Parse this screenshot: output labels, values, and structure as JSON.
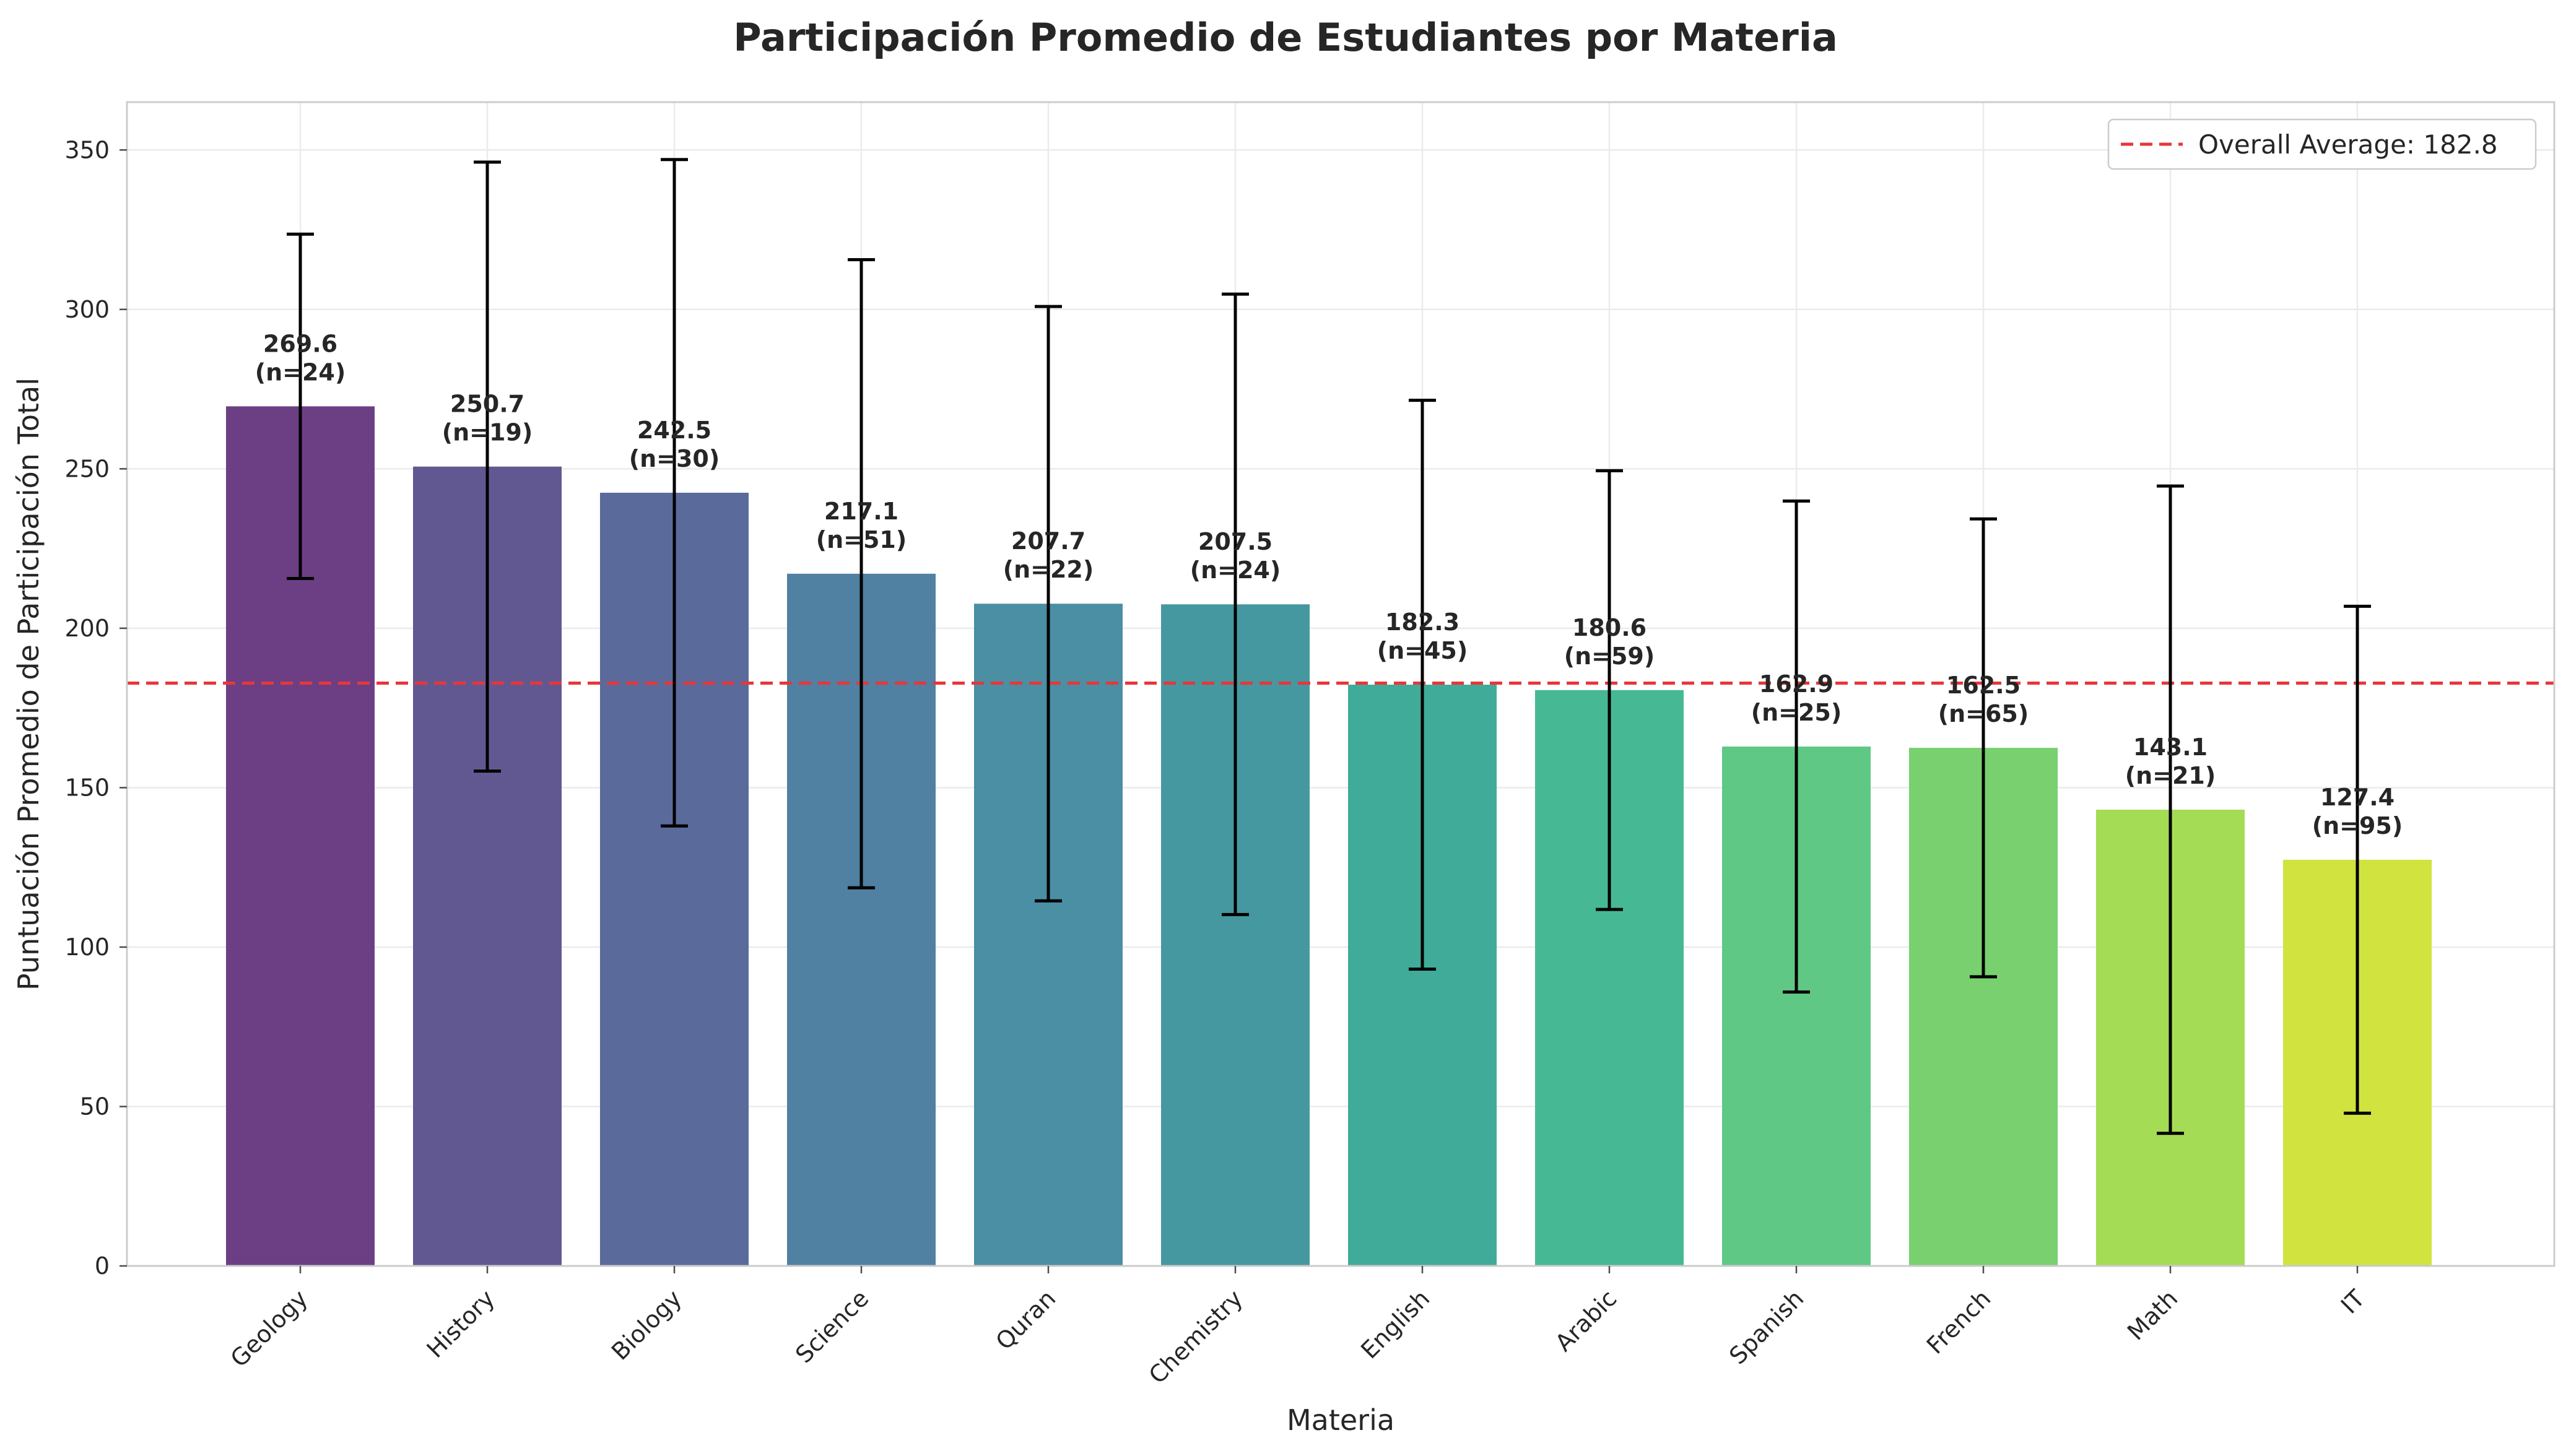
{
  "chart_data": {
    "type": "bar",
    "title": "Participación Promedio de Estudiantes por Materia",
    "xlabel": "Materia",
    "ylabel": "Puntuación Promedio de Participación Total",
    "ylim": [
      0,
      365
    ],
    "yticks": [
      0,
      50,
      100,
      150,
      200,
      250,
      300,
      350
    ],
    "grid": true,
    "legend": {
      "position": "top-right",
      "entries": [
        "Overall Average: 182.8"
      ]
    },
    "reference_line": {
      "value": 182.8,
      "color": "#e8363a",
      "style": "dashed"
    },
    "categories": [
      "Geology",
      "History",
      "Biology",
      "Science",
      "Quran",
      "Chemistry",
      "English",
      "Arabic",
      "Spanish",
      "French",
      "Math",
      "IT"
    ],
    "values": [
      269.6,
      250.7,
      242.5,
      217.1,
      207.7,
      207.5,
      182.3,
      180.6,
      162.9,
      162.5,
      143.1,
      127.4
    ],
    "error": [
      54,
      95.5,
      104.5,
      98.5,
      93.2,
      97.3,
      89.2,
      68.8,
      77,
      71.8,
      101.5,
      79.5
    ],
    "counts": [
      24,
      19,
      30,
      51,
      22,
      24,
      45,
      59,
      25,
      65,
      21,
      95
    ],
    "value_labels": [
      "269.6",
      "250.7",
      "242.5",
      "217.1",
      "207.7",
      "207.5",
      "182.3",
      "180.6",
      "162.9",
      "162.5",
      "143.1",
      "127.4"
    ],
    "count_labels": [
      "(n=24)",
      "(n=19)",
      "(n=30)",
      "(n=51)",
      "(n=22)",
      "(n=24)",
      "(n=45)",
      "(n=59)",
      "(n=25)",
      "(n=65)",
      "(n=21)",
      "(n=95)"
    ],
    "colors": [
      "#6c3f85",
      "#625891",
      "#5a6a9b",
      "#5080a2",
      "#4a8fa4",
      "#45989f",
      "#3fab98",
      "#46b994",
      "#5fc884",
      "#78d06f",
      "#a4dc55",
      "#d0e33f"
    ]
  }
}
